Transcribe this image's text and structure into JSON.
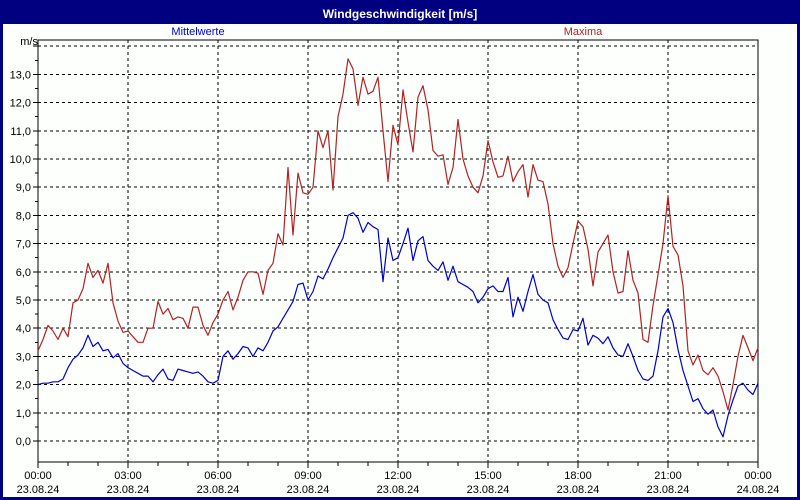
{
  "window": {
    "title": "Windgeschwindigkeit [m/s]"
  },
  "legend": {
    "mean_label": "Mittelwerte",
    "max_label": "Maxima"
  },
  "axis": {
    "unit_label": "m/s",
    "y_tick_labels": [
      "0,0",
      "1,0",
      "2,0",
      "3,0",
      "4,0",
      "5,0",
      "6,0",
      "7,0",
      "8,0",
      "9,0",
      "10,0",
      "11,0",
      "12,0",
      "13,0"
    ],
    "x_ticks": [
      {
        "time": "00:00",
        "date": "23.08.24"
      },
      {
        "time": "03:00",
        "date": "23.08.24"
      },
      {
        "time": "06:00",
        "date": "23.08.24"
      },
      {
        "time": "09:00",
        "date": "23.08.24"
      },
      {
        "time": "12:00",
        "date": "23.08.24"
      },
      {
        "time": "15:00",
        "date": "23.08.24"
      },
      {
        "time": "18:00",
        "date": "23.08.24"
      },
      {
        "time": "21:00",
        "date": "23.08.24"
      },
      {
        "time": "00:00",
        "date": "24.08.24"
      }
    ]
  },
  "colors": {
    "titlebar": "#000080",
    "frame": "#000080",
    "grid": "#000000",
    "mean": "#0000cc",
    "max": "#b22222"
  },
  "chart_data": {
    "type": "line",
    "title": "Windgeschwindigkeit [m/s]",
    "xlabel": "",
    "ylabel": "m/s",
    "ylim": [
      0,
      14.25
    ],
    "x_hours": 24,
    "step_minutes": 10,
    "x_start_time": "00:00",
    "grid": true,
    "legend_position": "top",
    "series": [
      {
        "name": "Mittelwerte",
        "color": "#0000cc",
        "values": [
          2.0,
          2.05,
          2.05,
          2.1,
          2.1,
          2.2,
          2.6,
          2.9,
          3.05,
          3.3,
          3.75,
          3.35,
          3.5,
          3.2,
          3.25,
          2.95,
          3.1,
          2.75,
          2.6,
          2.5,
          2.4,
          2.3,
          2.3,
          2.1,
          2.35,
          2.55,
          2.2,
          2.15,
          2.55,
          2.5,
          2.45,
          2.4,
          2.45,
          2.3,
          2.1,
          2.05,
          2.15,
          3.0,
          3.2,
          2.9,
          3.1,
          3.35,
          3.3,
          3.0,
          3.3,
          3.2,
          3.5,
          3.9,
          4.05,
          4.35,
          4.65,
          4.95,
          5.55,
          5.6,
          5.0,
          5.3,
          5.85,
          5.75,
          6.1,
          6.5,
          6.85,
          7.2,
          8.0,
          8.1,
          7.9,
          7.4,
          7.75,
          7.6,
          7.5,
          5.65,
          7.2,
          6.4,
          6.5,
          7.0,
          7.55,
          6.4,
          7.1,
          7.25,
          6.4,
          6.2,
          6.05,
          6.35,
          5.7,
          6.2,
          5.65,
          5.55,
          5.45,
          5.3,
          4.9,
          5.1,
          5.4,
          5.5,
          5.3,
          5.3,
          5.8,
          4.4,
          5.1,
          4.6,
          5.3,
          5.9,
          5.2,
          5.0,
          4.9,
          4.3,
          3.95,
          3.65,
          3.6,
          3.95,
          3.9,
          4.35,
          3.4,
          3.75,
          3.65,
          3.45,
          3.7,
          3.3,
          3.05,
          3.0,
          3.45,
          3.0,
          2.5,
          2.2,
          2.15,
          2.3,
          3.2,
          4.4,
          4.7,
          4.2,
          3.25,
          2.5,
          1.95,
          1.4,
          1.5,
          1.15,
          0.95,
          1.1,
          0.5,
          0.15,
          0.9,
          1.45,
          1.95,
          2.05,
          1.8,
          1.65,
          2.05
        ]
      },
      {
        "name": "Maxima",
        "color": "#b22222",
        "values": [
          3.2,
          3.6,
          4.1,
          3.9,
          3.6,
          4.0,
          3.7,
          4.9,
          5.0,
          5.4,
          6.3,
          5.8,
          6.05,
          5.6,
          6.3,
          4.9,
          4.25,
          3.85,
          3.9,
          3.7,
          3.5,
          3.5,
          4.0,
          4.0,
          4.95,
          4.5,
          4.7,
          4.3,
          4.4,
          4.35,
          4.0,
          4.75,
          4.75,
          4.1,
          3.75,
          4.2,
          4.5,
          5.0,
          5.3,
          4.65,
          5.1,
          5.7,
          6.0,
          6.0,
          5.95,
          5.2,
          6.05,
          6.3,
          7.35,
          6.95,
          9.7,
          7.3,
          9.5,
          8.8,
          8.75,
          9.0,
          11.0,
          10.4,
          11.0,
          8.9,
          11.5,
          12.3,
          13.55,
          13.2,
          11.9,
          12.9,
          12.3,
          12.4,
          12.9,
          11.0,
          9.2,
          11.2,
          10.5,
          12.45,
          11.3,
          10.25,
          12.2,
          12.6,
          11.75,
          10.3,
          10.1,
          10.15,
          9.1,
          9.7,
          11.4,
          10.0,
          9.4,
          9.0,
          8.8,
          9.4,
          10.65,
          9.9,
          9.35,
          9.4,
          10.1,
          9.2,
          9.55,
          9.8,
          8.65,
          9.8,
          9.25,
          9.2,
          8.4,
          7.0,
          6.2,
          5.8,
          6.15,
          7.0,
          7.8,
          7.6,
          6.8,
          5.5,
          6.7,
          7.0,
          7.3,
          6.0,
          5.25,
          5.3,
          6.75,
          5.7,
          5.25,
          3.6,
          3.5,
          4.8,
          5.9,
          7.0,
          8.7,
          6.9,
          6.6,
          5.5,
          3.2,
          2.7,
          3.05,
          2.5,
          2.35,
          2.6,
          2.3,
          1.75,
          1.1,
          2.0,
          3.0,
          3.75,
          3.3,
          2.85,
          3.3
        ]
      }
    ]
  }
}
